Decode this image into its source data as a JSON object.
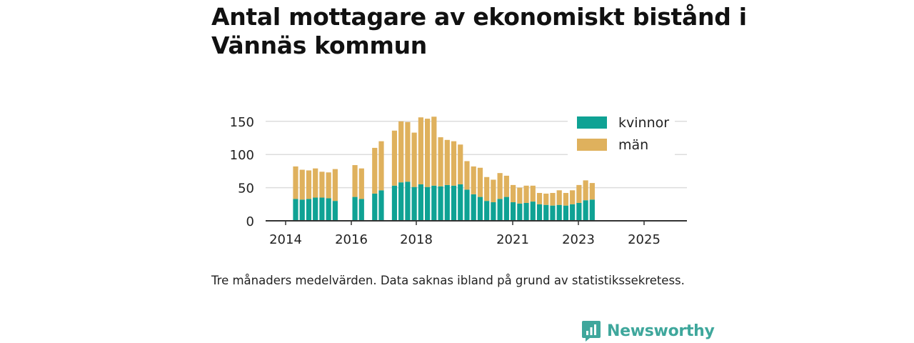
{
  "title": "Antal mottagare av ekonomiskt bistånd i Vännäs kommun",
  "note": "Tre månaders medelvärden. Data saknas ibland på grund av statistikssekretess.",
  "brand": {
    "name": "Newsworthy",
    "icon": "newsworthy-logo-icon"
  },
  "colors": {
    "kvinnor": "#0fa294",
    "man": "#dfb15d",
    "grid": "#dddddd",
    "axis": "#333333"
  },
  "chart_data": {
    "type": "bar",
    "stacked": true,
    "ylim": [
      0,
      160
    ],
    "yticks": [
      0,
      50,
      100,
      150
    ],
    "xticks": [
      "2014",
      "2016",
      "2018",
      "2021",
      "2023",
      "2025"
    ],
    "legend": [
      "kvinnor",
      "män"
    ],
    "legend_position": "top-right",
    "series": [
      {
        "name": "kvinnor",
        "values": [
          33,
          32,
          33,
          35,
          35,
          34,
          30,
          null,
          null,
          36,
          33,
          null,
          41,
          46,
          null,
          53,
          58,
          59,
          51,
          55,
          51,
          53,
          52,
          54,
          53,
          55,
          47,
          40,
          36,
          30,
          28,
          33,
          36,
          28,
          26,
          27,
          29,
          25,
          24,
          23,
          24,
          23,
          25,
          27,
          31,
          32
        ]
      },
      {
        "name": "män",
        "values": [
          49,
          45,
          43,
          44,
          39,
          39,
          48,
          null,
          null,
          48,
          46,
          null,
          69,
          74,
          null,
          83,
          92,
          90,
          82,
          101,
          103,
          104,
          74,
          68,
          67,
          60,
          43,
          42,
          44,
          36,
          34,
          39,
          32,
          26,
          24,
          26,
          24,
          17,
          17,
          19,
          22,
          19,
          21,
          27,
          30,
          25
        ]
      }
    ]
  }
}
